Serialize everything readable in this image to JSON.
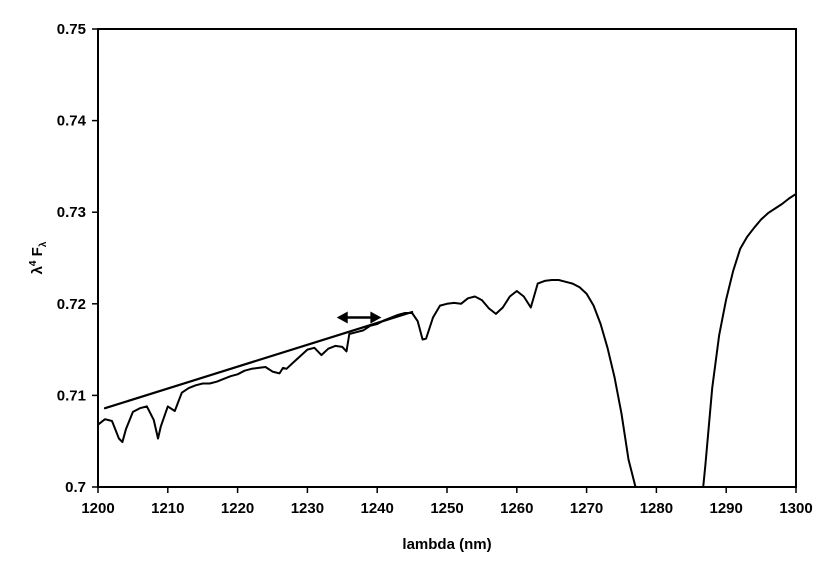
{
  "chart_data": {
    "type": "line",
    "xlabel": "lambda (nm)",
    "ylabel": {
      "base": "λ",
      "exp": "4",
      "main": " F",
      "sub": "λ"
    },
    "xlim": [
      1200,
      1300
    ],
    "ylim": [
      0.7,
      0.75
    ],
    "xticks": [
      "1200",
      "1210",
      "1220",
      "1230",
      "1240",
      "1250",
      "1260",
      "1270",
      "1280",
      "1290",
      "1300"
    ],
    "yticks": [
      "0.7",
      "0.71",
      "0.72",
      "0.73",
      "0.74",
      "0.75"
    ],
    "grid": false,
    "legend": "none",
    "series": [
      {
        "style": "spectrum",
        "x": [
          1200,
          1201,
          1202,
          1203,
          1203.5,
          1204,
          1205,
          1206,
          1207,
          1208,
          1208.6,
          1209,
          1210,
          1211,
          1212,
          1213,
          1214,
          1215,
          1216,
          1217,
          1218,
          1219,
          1220,
          1221,
          1222,
          1223,
          1224,
          1225,
          1226,
          1226.5,
          1227,
          1228,
          1229,
          1230,
          1231,
          1232,
          1233,
          1234,
          1235,
          1235.6,
          1236,
          1237,
          1238,
          1239,
          1240,
          1241,
          1242,
          1243,
          1244,
          1245,
          1245.8,
          1246.5,
          1247,
          1248,
          1249,
          1250,
          1251,
          1252,
          1253,
          1254,
          1255,
          1256,
          1257,
          1258,
          1259,
          1260,
          1261,
          1262,
          1263,
          1264,
          1265,
          1266,
          1267,
          1268,
          1269,
          1270,
          1271,
          1272,
          1273,
          1274,
          1275,
          1276,
          1277,
          1277.4,
          1286.7,
          1287,
          1288,
          1289,
          1290,
          1291,
          1292,
          1293,
          1294,
          1295,
          1296,
          1297,
          1298,
          1299,
          1300
        ],
        "y": [
          0.7068,
          0.7074,
          0.7072,
          0.7053,
          0.7049,
          0.7063,
          0.7082,
          0.7086,
          0.7088,
          0.7073,
          0.7053,
          0.7066,
          0.7088,
          0.7083,
          0.7103,
          0.7108,
          0.7111,
          0.7113,
          0.7113,
          0.7115,
          0.7118,
          0.7121,
          0.7123,
          0.7127,
          0.7129,
          0.713,
          0.7131,
          0.7126,
          0.7124,
          0.713,
          0.7129,
          0.7136,
          0.7143,
          0.715,
          0.7152,
          0.7144,
          0.7151,
          0.7154,
          0.7153,
          0.7148,
          0.7167,
          0.7169,
          0.7171,
          0.7176,
          0.7178,
          0.7182,
          0.7185,
          0.7188,
          0.719,
          0.719,
          0.7181,
          0.7161,
          0.7162,
          0.7185,
          0.7198,
          0.72,
          0.7201,
          0.72,
          0.7206,
          0.7208,
          0.7204,
          0.7195,
          0.7189,
          0.7196,
          0.7208,
          0.7214,
          0.7208,
          0.7196,
          0.7222,
          0.7225,
          0.7226,
          0.7226,
          0.7224,
          0.7222,
          0.7218,
          0.7211,
          0.7198,
          0.7178,
          0.7152,
          0.712,
          0.708,
          0.703,
          0.7,
          0.7,
          0.7,
          0.7023,
          0.7108,
          0.7166,
          0.7205,
          0.7236,
          0.726,
          0.7273,
          0.7283,
          0.7292,
          0.7299,
          0.7304,
          0.7309,
          0.7315,
          0.732
        ]
      },
      {
        "style": "fit",
        "x": [
          1201,
          1245
        ],
        "y": [
          0.7086,
          0.7191
        ]
      }
    ],
    "annotations": [
      {
        "type": "double-arrow",
        "x": [
          1234.2,
          1240.6
        ],
        "y": 0.7185
      }
    ]
  }
}
